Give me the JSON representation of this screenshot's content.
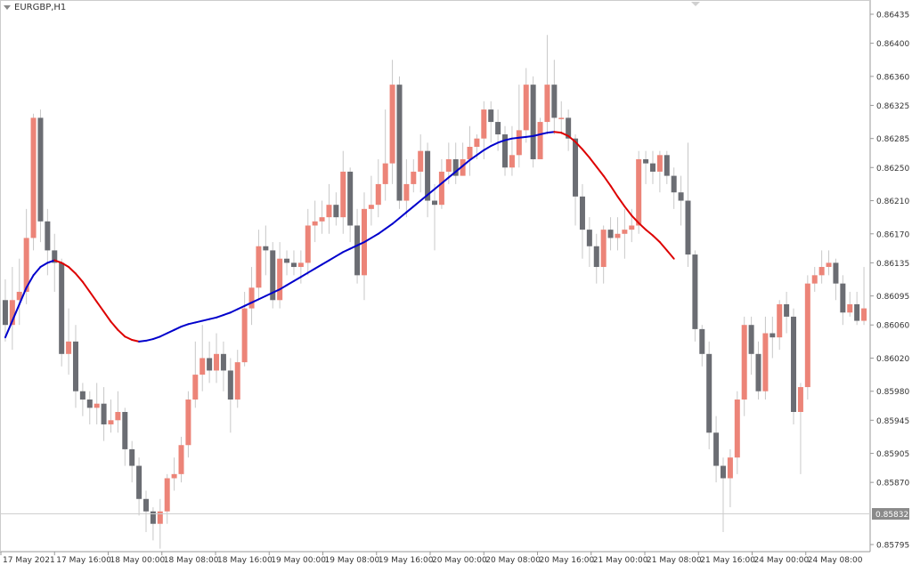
{
  "chart": {
    "symbol_timeframe": "EURGBP,H1",
    "current_price_label": "0.85832",
    "colors": {
      "background": "#ffffff",
      "bull_candle": "#ec8478",
      "bear_candle": "#6b6d73",
      "wick": "#c8c8c8",
      "ma_up": "#0000cc",
      "ma_down": "#dd0000",
      "axis_text": "#333333",
      "price_tag_bg": "#8a8a8a"
    }
  },
  "chart_data": {
    "type": "candlestick",
    "title": "EURGBP,H1",
    "y_ticks": [
      "0.86435",
      "0.86400",
      "0.86360",
      "0.86325",
      "0.86285",
      "0.86250",
      "0.86210",
      "0.86170",
      "0.86135",
      "0.86095",
      "0.86060",
      "0.86020",
      "0.85980",
      "0.85945",
      "0.85905",
      "0.85870",
      "0.85832",
      "0.85795"
    ],
    "x_ticks": [
      "17 May 2021",
      "17 May 16:00",
      "18 May 00:00",
      "18 May 08:00",
      "18 May 16:00",
      "19 May 00:00",
      "19 May 08:00",
      "19 May 16:00",
      "20 May 00:00",
      "20 May 08:00",
      "20 May 16:00",
      "21 May 00:00",
      "21 May 08:00",
      "21 May 16:00",
      "24 May 00:00",
      "24 May 08:00"
    ],
    "ylim": [
      0.85795,
      0.86435
    ],
    "candles": [
      [
        0.8609,
        0.8606,
        0.86115,
        0.8604
      ],
      [
        0.8606,
        0.8609,
        0.8613,
        0.8603
      ],
      [
        0.8609,
        0.861,
        0.8614,
        0.8606
      ],
      [
        0.861,
        0.86165,
        0.862,
        0.86085
      ],
      [
        0.86165,
        0.8631,
        0.86315,
        0.8615
      ],
      [
        0.8631,
        0.86185,
        0.8632,
        0.8616
      ],
      [
        0.86185,
        0.8615,
        0.862,
        0.8612
      ],
      [
        0.8615,
        0.86135,
        0.8617,
        0.861
      ],
      [
        0.86135,
        0.86025,
        0.8614,
        0.8601
      ],
      [
        0.86025,
        0.8604,
        0.8608,
        0.86
      ],
      [
        0.8604,
        0.8598,
        0.8606,
        0.8596
      ],
      [
        0.8598,
        0.8597,
        0.8599,
        0.8595
      ],
      [
        0.8597,
        0.8596,
        0.8598,
        0.8594
      ],
      [
        0.8596,
        0.85965,
        0.8599,
        0.8594
      ],
      [
        0.85965,
        0.8594,
        0.85985,
        0.8592
      ],
      [
        0.8594,
        0.85945,
        0.8597,
        0.8593
      ],
      [
        0.85945,
        0.85955,
        0.8598,
        0.8593
      ],
      [
        0.85955,
        0.8591,
        0.8596,
        0.8589
      ],
      [
        0.8591,
        0.8589,
        0.8592,
        0.8587
      ],
      [
        0.8589,
        0.8585,
        0.859,
        0.8583
      ],
      [
        0.8585,
        0.85835,
        0.8586,
        0.8581
      ],
      [
        0.85835,
        0.8582,
        0.8584,
        0.858
      ],
      [
        0.8582,
        0.85835,
        0.8585,
        0.8579
      ],
      [
        0.85835,
        0.85875,
        0.8588,
        0.8582
      ],
      [
        0.85875,
        0.8588,
        0.859,
        0.8586
      ],
      [
        0.8588,
        0.85915,
        0.85925,
        0.8587
      ],
      [
        0.85915,
        0.8597,
        0.8598,
        0.859
      ],
      [
        0.8597,
        0.86,
        0.8604,
        0.8596
      ],
      [
        0.86,
        0.8602,
        0.8606,
        0.8598
      ],
      [
        0.8602,
        0.86005,
        0.8604,
        0.8599
      ],
      [
        0.86005,
        0.86025,
        0.8605,
        0.8599
      ],
      [
        0.86025,
        0.86005,
        0.8604,
        0.8598
      ],
      [
        0.86005,
        0.8597,
        0.8602,
        0.8593
      ],
      [
        0.8597,
        0.86015,
        0.8603,
        0.8596
      ],
      [
        0.86015,
        0.8608,
        0.861,
        0.8601
      ],
      [
        0.8608,
        0.86105,
        0.8613,
        0.8606
      ],
      [
        0.86105,
        0.86155,
        0.86175,
        0.8609
      ],
      [
        0.86155,
        0.8615,
        0.8618,
        0.8612
      ],
      [
        0.8615,
        0.8609,
        0.8616,
        0.8608
      ],
      [
        0.8609,
        0.8614,
        0.8616,
        0.8608
      ],
      [
        0.8614,
        0.86135,
        0.8615,
        0.8612
      ],
      [
        0.86135,
        0.8613,
        0.8615,
        0.8612
      ],
      [
        0.8613,
        0.86135,
        0.8615,
        0.8611
      ],
      [
        0.86135,
        0.8618,
        0.862,
        0.8612
      ],
      [
        0.8618,
        0.86185,
        0.8621,
        0.8616
      ],
      [
        0.86185,
        0.8619,
        0.8621,
        0.8617
      ],
      [
        0.8619,
        0.86205,
        0.8623,
        0.8617
      ],
      [
        0.86205,
        0.8619,
        0.8622,
        0.8618
      ],
      [
        0.8619,
        0.86245,
        0.8627,
        0.8617
      ],
      [
        0.86245,
        0.8618,
        0.8625,
        0.8616
      ],
      [
        0.8618,
        0.8612,
        0.862,
        0.8611
      ],
      [
        0.8612,
        0.862,
        0.8622,
        0.8609
      ],
      [
        0.862,
        0.86205,
        0.8624,
        0.8618
      ],
      [
        0.86205,
        0.8623,
        0.8626,
        0.8619
      ],
      [
        0.8623,
        0.86255,
        0.8632,
        0.8621
      ],
      [
        0.86255,
        0.8635,
        0.8638,
        0.8623
      ],
      [
        0.8635,
        0.8621,
        0.8636,
        0.862
      ],
      [
        0.8621,
        0.8623,
        0.8626,
        0.8619
      ],
      [
        0.8623,
        0.86245,
        0.8626,
        0.8622
      ],
      [
        0.86245,
        0.8627,
        0.8629,
        0.8622
      ],
      [
        0.8627,
        0.8621,
        0.8628,
        0.8619
      ],
      [
        0.8621,
        0.86205,
        0.8623,
        0.8615
      ],
      [
        0.86205,
        0.86245,
        0.8626,
        0.862
      ],
      [
        0.86245,
        0.8626,
        0.8628,
        0.8623
      ],
      [
        0.8626,
        0.8624,
        0.8628,
        0.8623
      ],
      [
        0.8624,
        0.8626,
        0.8628,
        0.8624
      ],
      [
        0.8626,
        0.86275,
        0.863,
        0.8624
      ],
      [
        0.86275,
        0.86285,
        0.8629,
        0.8626
      ],
      [
        0.86285,
        0.8632,
        0.8633,
        0.8626
      ],
      [
        0.8632,
        0.86305,
        0.8633,
        0.8628
      ],
      [
        0.86305,
        0.8629,
        0.8632,
        0.8627
      ],
      [
        0.8629,
        0.8625,
        0.863,
        0.8624
      ],
      [
        0.8625,
        0.86265,
        0.863,
        0.8624
      ],
      [
        0.86265,
        0.86295,
        0.8635,
        0.8625
      ],
      [
        0.86295,
        0.8635,
        0.8637,
        0.8628
      ],
      [
        0.8635,
        0.8626,
        0.8636,
        0.8625
      ],
      [
        0.8626,
        0.86305,
        0.8631,
        0.8628
      ],
      [
        0.86305,
        0.8635,
        0.8641,
        0.8629
      ],
      [
        0.8635,
        0.8631,
        0.8638,
        0.8629
      ],
      [
        0.8631,
        0.8631,
        0.8633,
        0.8629
      ],
      [
        0.8631,
        0.86285,
        0.8632,
        0.8627
      ],
      [
        0.86285,
        0.86215,
        0.8629,
        0.8618
      ],
      [
        0.86215,
        0.86175,
        0.8623,
        0.8614
      ],
      [
        0.86175,
        0.86155,
        0.8619,
        0.8613
      ],
      [
        0.86155,
        0.8613,
        0.8617,
        0.8611
      ],
      [
        0.8613,
        0.86175,
        0.8618,
        0.8611
      ],
      [
        0.86175,
        0.86165,
        0.8619,
        0.8615
      ],
      [
        0.86165,
        0.8617,
        0.8619,
        0.8615
      ],
      [
        0.8617,
        0.86175,
        0.862,
        0.8614
      ],
      [
        0.86175,
        0.8618,
        0.862,
        0.8616
      ],
      [
        0.8618,
        0.8626,
        0.8627,
        0.8617
      ],
      [
        0.8626,
        0.86255,
        0.8627,
        0.8623
      ],
      [
        0.86255,
        0.86245,
        0.8627,
        0.8623
      ],
      [
        0.86245,
        0.86265,
        0.8627,
        0.8622
      ],
      [
        0.86265,
        0.8624,
        0.8627,
        0.8623
      ],
      [
        0.8624,
        0.8622,
        0.8625,
        0.862
      ],
      [
        0.8622,
        0.8621,
        0.8624,
        0.8618
      ],
      [
        0.8621,
        0.86145,
        0.8628,
        0.8613
      ],
      [
        0.86145,
        0.86055,
        0.8615,
        0.8604
      ],
      [
        0.86055,
        0.86025,
        0.8606,
        0.8601
      ],
      [
        0.86025,
        0.8593,
        0.8604,
        0.8591
      ],
      [
        0.8593,
        0.8589,
        0.8595,
        0.8587
      ],
      [
        0.8589,
        0.85875,
        0.859,
        0.8581
      ],
      [
        0.85875,
        0.859,
        0.8591,
        0.8584
      ],
      [
        0.859,
        0.8597,
        0.8598,
        0.8588
      ],
      [
        0.8597,
        0.8606,
        0.8607,
        0.8595
      ],
      [
        0.8606,
        0.86025,
        0.8607,
        0.86
      ],
      [
        0.86025,
        0.8598,
        0.8604,
        0.8597
      ],
      [
        0.8598,
        0.8605,
        0.8607,
        0.8597
      ],
      [
        0.8605,
        0.86045,
        0.8607,
        0.8602
      ],
      [
        0.86045,
        0.86085,
        0.8609,
        0.8603
      ],
      [
        0.86085,
        0.8607,
        0.861,
        0.8605
      ],
      [
        0.8607,
        0.85955,
        0.8608,
        0.8594
      ],
      [
        0.85955,
        0.85985,
        0.8599,
        0.8588
      ],
      [
        0.85985,
        0.8611,
        0.8612,
        0.8597
      ],
      [
        0.8611,
        0.8612,
        0.8613,
        0.861
      ],
      [
        0.8612,
        0.8613,
        0.8615,
        0.8611
      ],
      [
        0.8613,
        0.86135,
        0.8615,
        0.8612
      ],
      [
        0.86135,
        0.8611,
        0.8614,
        0.8609
      ],
      [
        0.8611,
        0.86075,
        0.8612,
        0.8606
      ],
      [
        0.86075,
        0.86085,
        0.861,
        0.8607
      ],
      [
        0.86085,
        0.86065,
        0.861,
        0.8606
      ],
      [
        0.86065,
        0.8608,
        0.8613,
        0.8606
      ]
    ],
    "moving_average": [
      0.86045,
      0.86065,
      0.86085,
      0.86105,
      0.8612,
      0.8613,
      0.86135,
      0.86138,
      0.86135,
      0.8613,
      0.86122,
      0.86112,
      0.861,
      0.86088,
      0.86076,
      0.86064,
      0.86054,
      0.86046,
      0.86042,
      0.8604,
      0.86041,
      0.86043,
      0.86046,
      0.8605,
      0.86054,
      0.86058,
      0.86061,
      0.86063,
      0.86065,
      0.86067,
      0.86069,
      0.86072,
      0.86075,
      0.86079,
      0.86083,
      0.86087,
      0.86091,
      0.86095,
      0.86099,
      0.86103,
      0.86108,
      0.86113,
      0.86118,
      0.86123,
      0.86128,
      0.86133,
      0.86138,
      0.86143,
      0.86148,
      0.86152,
      0.86156,
      0.8616,
      0.86165,
      0.8617,
      0.86176,
      0.86182,
      0.86189,
      0.86196,
      0.86203,
      0.8621,
      0.86217,
      0.86224,
      0.86231,
      0.86238,
      0.86245,
      0.86252,
      0.86259,
      0.86265,
      0.86271,
      0.86276,
      0.8628,
      0.86283,
      0.86285,
      0.86286,
      0.86287,
      0.86288,
      0.8629,
      0.86292,
      0.86293,
      0.86292,
      0.86288,
      0.86281,
      0.86272,
      0.86262,
      0.86251,
      0.8624,
      0.86228,
      0.86215,
      0.86203,
      0.86192,
      0.86183,
      0.86175,
      0.86168,
      0.8616,
      0.8615,
      0.8614
    ]
  }
}
